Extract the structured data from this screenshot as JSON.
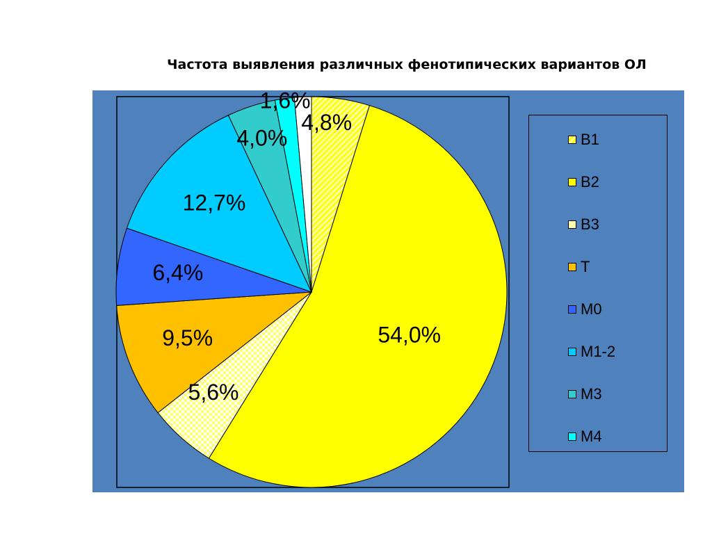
{
  "title": "Частота выявления различных фенотипических вариантов ОЛ",
  "colors": {
    "background": "#4f81bd",
    "B1": "#ffffa0",
    "B2": "#ffff00",
    "B3": "#ffffcc",
    "T": "#ffc000",
    "M0": "#3366ff",
    "M1-2": "#00ccff",
    "M3": "#33cccc",
    "M4": "#00ffff"
  },
  "chart_data": {
    "type": "pie",
    "title": "Частота выявления различных фенотипических вариантов ОЛ",
    "labels": [
      "B1",
      "B2",
      "B3",
      "T",
      "M0",
      "M1-2",
      "M3",
      "M4",
      ""
    ],
    "values": [
      4.8,
      54.0,
      5.6,
      9.5,
      6.4,
      12.7,
      4.0,
      1.6,
      1.4
    ],
    "data_labels": [
      "4,8%",
      "54,0%",
      "5,6%",
      "9,5%",
      "6,4%",
      "12,7%",
      "4,0%",
      "1,6%",
      ""
    ],
    "patterns": [
      "diagonal-stripes",
      "solid",
      "checker",
      "solid",
      "solid",
      "solid",
      "solid",
      "solid",
      "solid"
    ],
    "legend_position": "right",
    "legend_entries": [
      "B1",
      "B2",
      "B3",
      "T",
      "M0",
      "M1-2",
      "M3",
      "M4"
    ]
  }
}
